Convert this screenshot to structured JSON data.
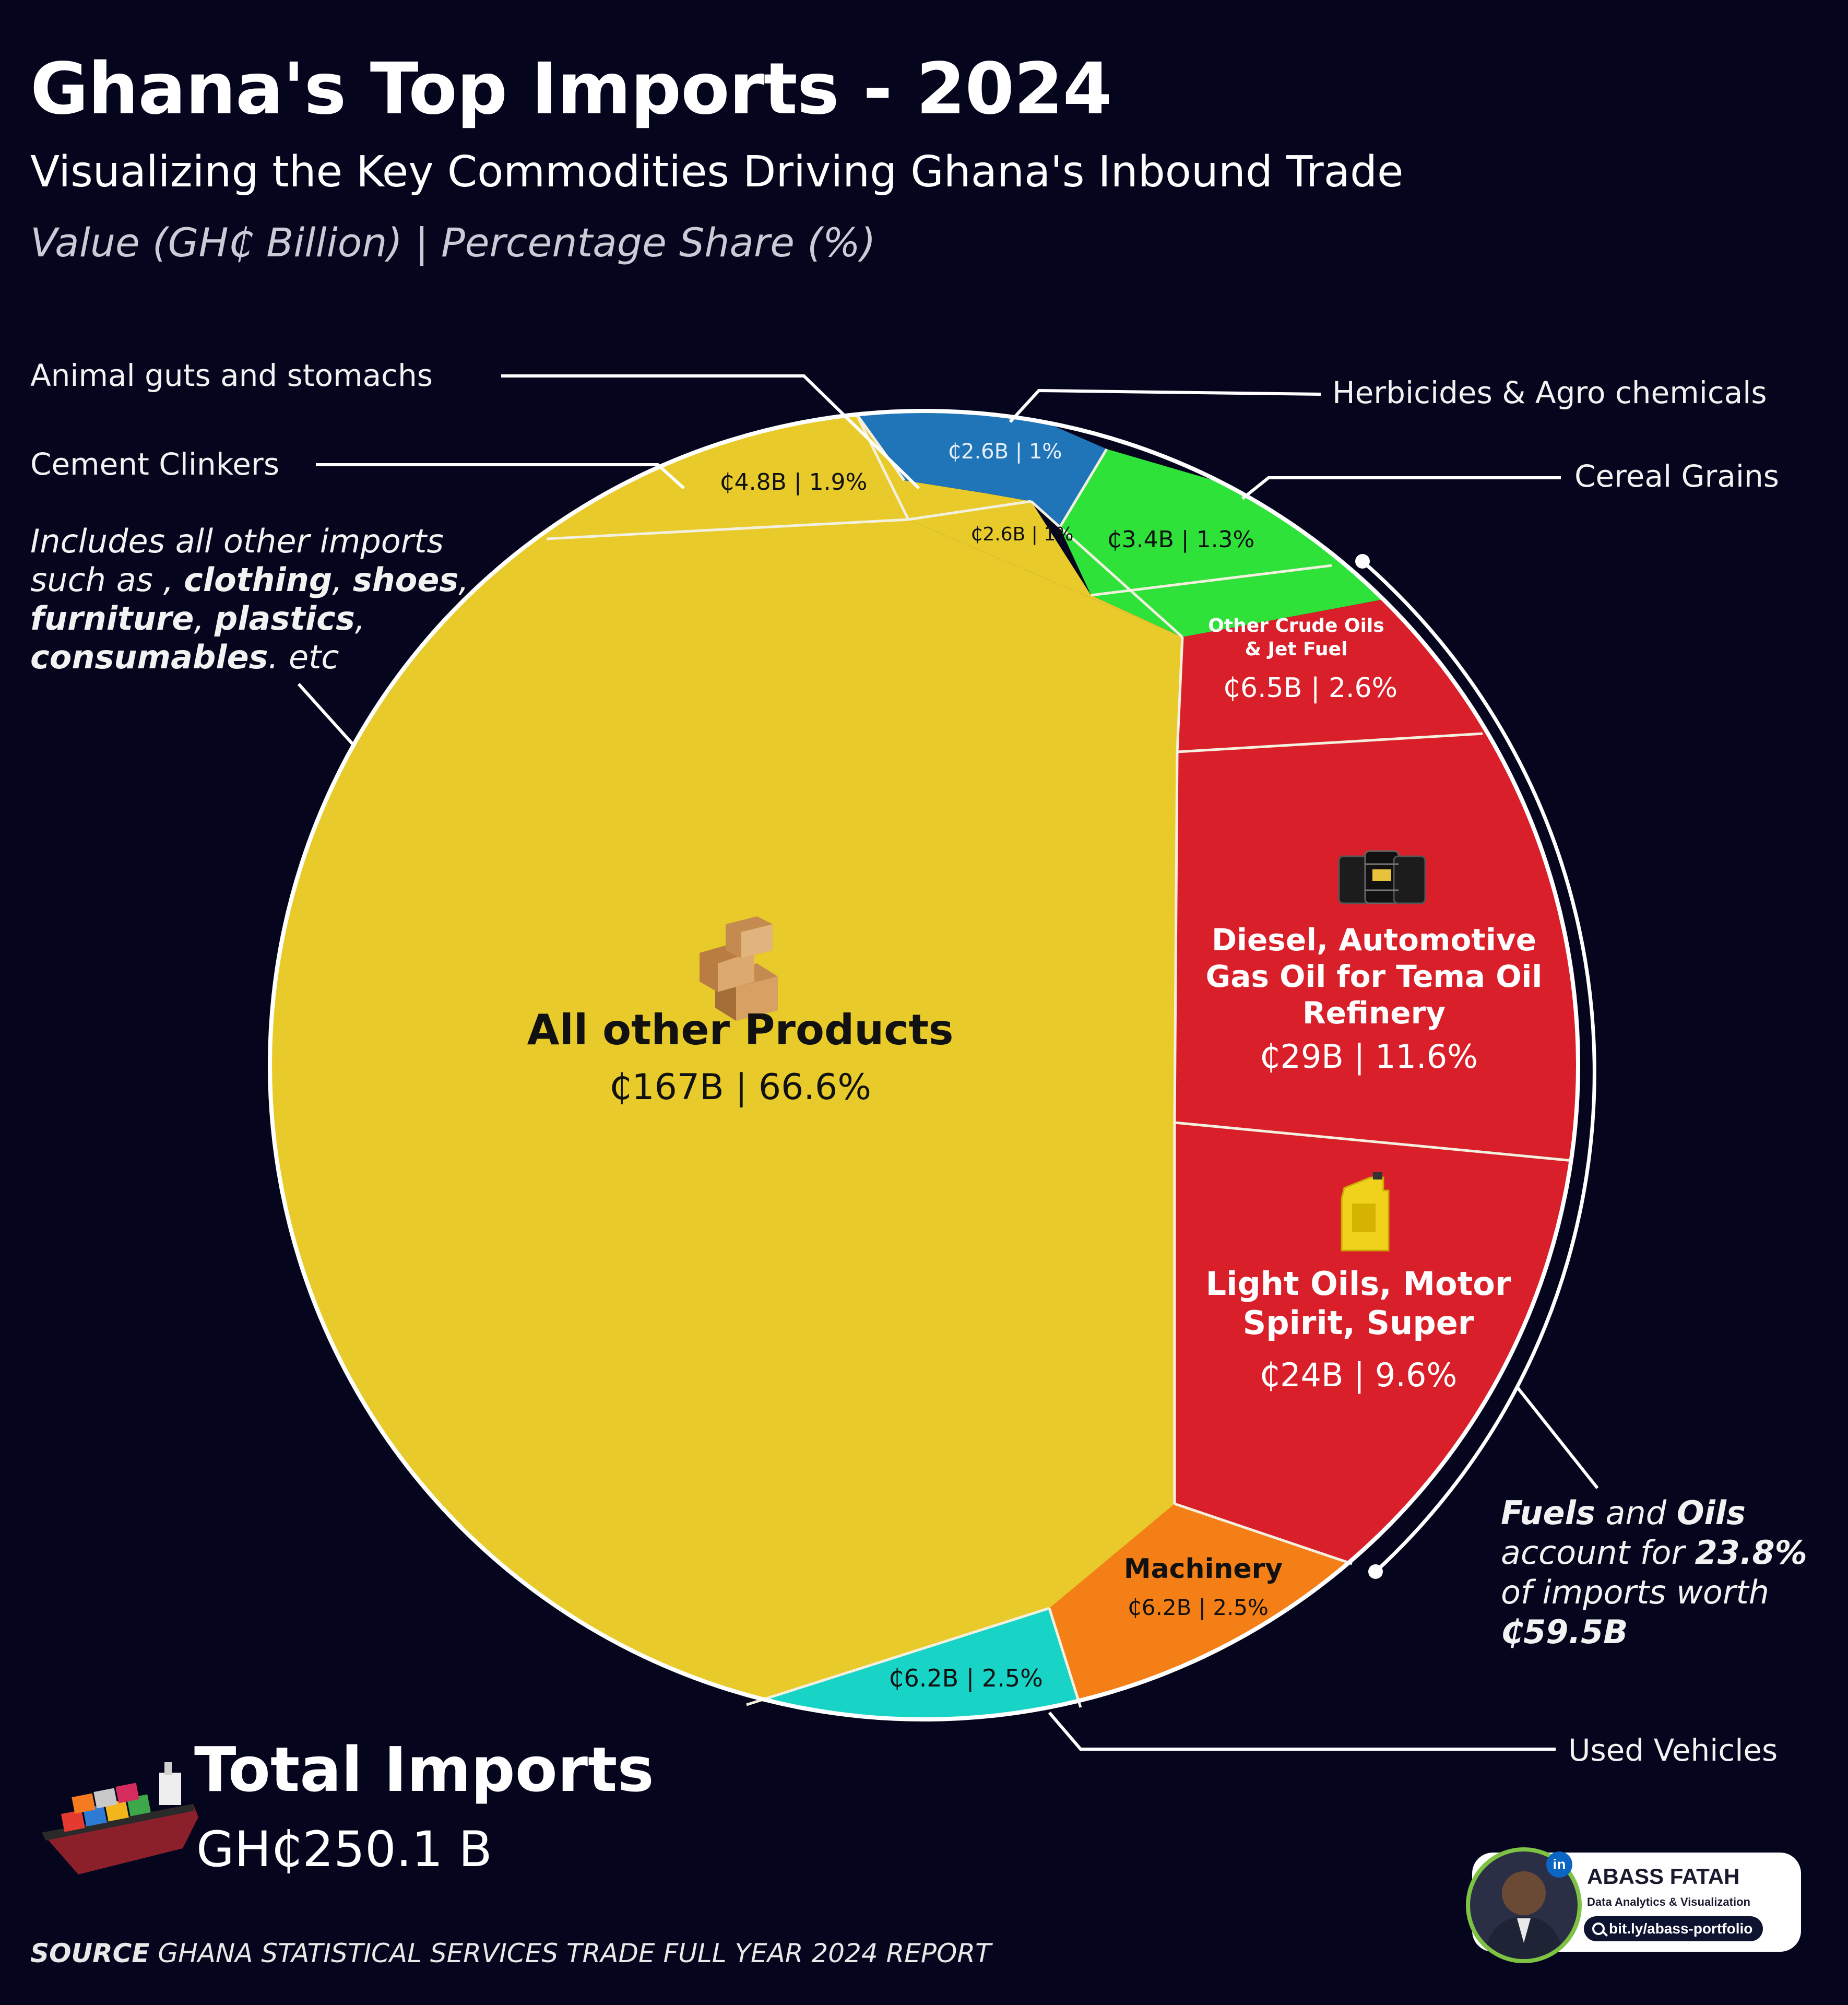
{
  "header": {
    "title": "Ghana's Top Imports - 2024",
    "subtitle": "Visualizing the Key Commodities Driving Ghana's Inbound Trade",
    "units": "Value (GH₵ Billion) | Percentage Share (%)"
  },
  "outside_labels": {
    "animal_guts": "Animal guts and  stomachs",
    "cement": "Cement Clinkers",
    "herbicides": "Herbicides & Agro chemicals",
    "cereal": "Cereal Grains",
    "used_vehicles": "Used Vehicles"
  },
  "note_other": {
    "line1": "Includes all other imports",
    "line2a": "such as , ",
    "clothing": "clothing",
    "c1": ",",
    "shoes": "shoes",
    "c2": ",",
    "furniture": "furniture",
    "c3": ",",
    "plastics": "plastics",
    "c4": ",",
    "consumables": "consumables",
    "tail": ". etc"
  },
  "fuel_note": {
    "fuels": "Fuels",
    "and": " and ",
    "oils": "Oils",
    "account": "account for ",
    "pct": "23.8%",
    "of": "of imports worth",
    "worth": "₵59.5B"
  },
  "total": {
    "title": "Total Imports",
    "value": "GH₵250.1 B"
  },
  "source": {
    "label": "SOURCE",
    "text": " GHANA STATISTICAL SERVICES  TRADE FULL YEAR 2024 REPORT"
  },
  "author": {
    "name": "ABASS FATAH",
    "role": "Data Analytics & Visualization",
    "link": "bit.ly/abass-portfolio",
    "badge": "in"
  },
  "colors": {
    "other": "#e8cb2b",
    "fuel": "#d9202a",
    "machinery": "#f57f17",
    "vehicles": "#17d4c6",
    "cereal": "#2ee23a",
    "herbicides": "#1f75b8",
    "background": "#05061e"
  },
  "chart_data": {
    "type": "pie",
    "unit": "GH₵ Billion",
    "slices": [
      {
        "name": "All other Products",
        "value": 167,
        "percent": 66.6,
        "label": "₵167B | 66.6%"
      },
      {
        "name": "Diesel, Automotive Gas Oil for Tema Oil Refinery",
        "value": 29,
        "percent": 11.6,
        "label": "₵29B | 11.6%"
      },
      {
        "name": "Light Oils, Motor Spirit, Super",
        "value": 24,
        "percent": 9.6,
        "label": "₵24B | 9.6%"
      },
      {
        "name": "Other Crude Oils & Jet Fuel",
        "value": 6.5,
        "percent": 2.6,
        "label": "₵6.5B | 2.6%"
      },
      {
        "name": "Machinery",
        "value": 6.2,
        "percent": 2.5,
        "label": "₵6.2B | 2.5%"
      },
      {
        "name": "Used Vehicles",
        "value": 6.2,
        "percent": 2.5,
        "label": "₵6.2B | 2.5%"
      },
      {
        "name": "Cement Clinkers",
        "value": 4.8,
        "percent": 1.9,
        "label": "₵4.8B | 1.9%"
      },
      {
        "name": "Cereal Grains",
        "value": 3.4,
        "percent": 1.3,
        "label": "₵3.4B | 1.3%"
      },
      {
        "name": "Herbicides & Agro chemicals",
        "value": 2.6,
        "percent": 1,
        "label": "₵2.6B | 1%"
      },
      {
        "name": "Animal guts and stomachs",
        "value": 2.6,
        "percent": 1,
        "label": "₵2.6B | 1%"
      }
    ],
    "inner_labels": {
      "other_title": "All other Products",
      "diesel_l1": "Diesel, Automotive",
      "diesel_l2": "Gas Oil for Tema Oil",
      "diesel_l3": "Refinery",
      "light_l1": "Light Oils, Motor",
      "light_l2": "Spirit, Super",
      "crude_l1": "Other Crude Oils",
      "crude_l2": "& Jet Fuel",
      "machinery": "Machinery"
    }
  }
}
